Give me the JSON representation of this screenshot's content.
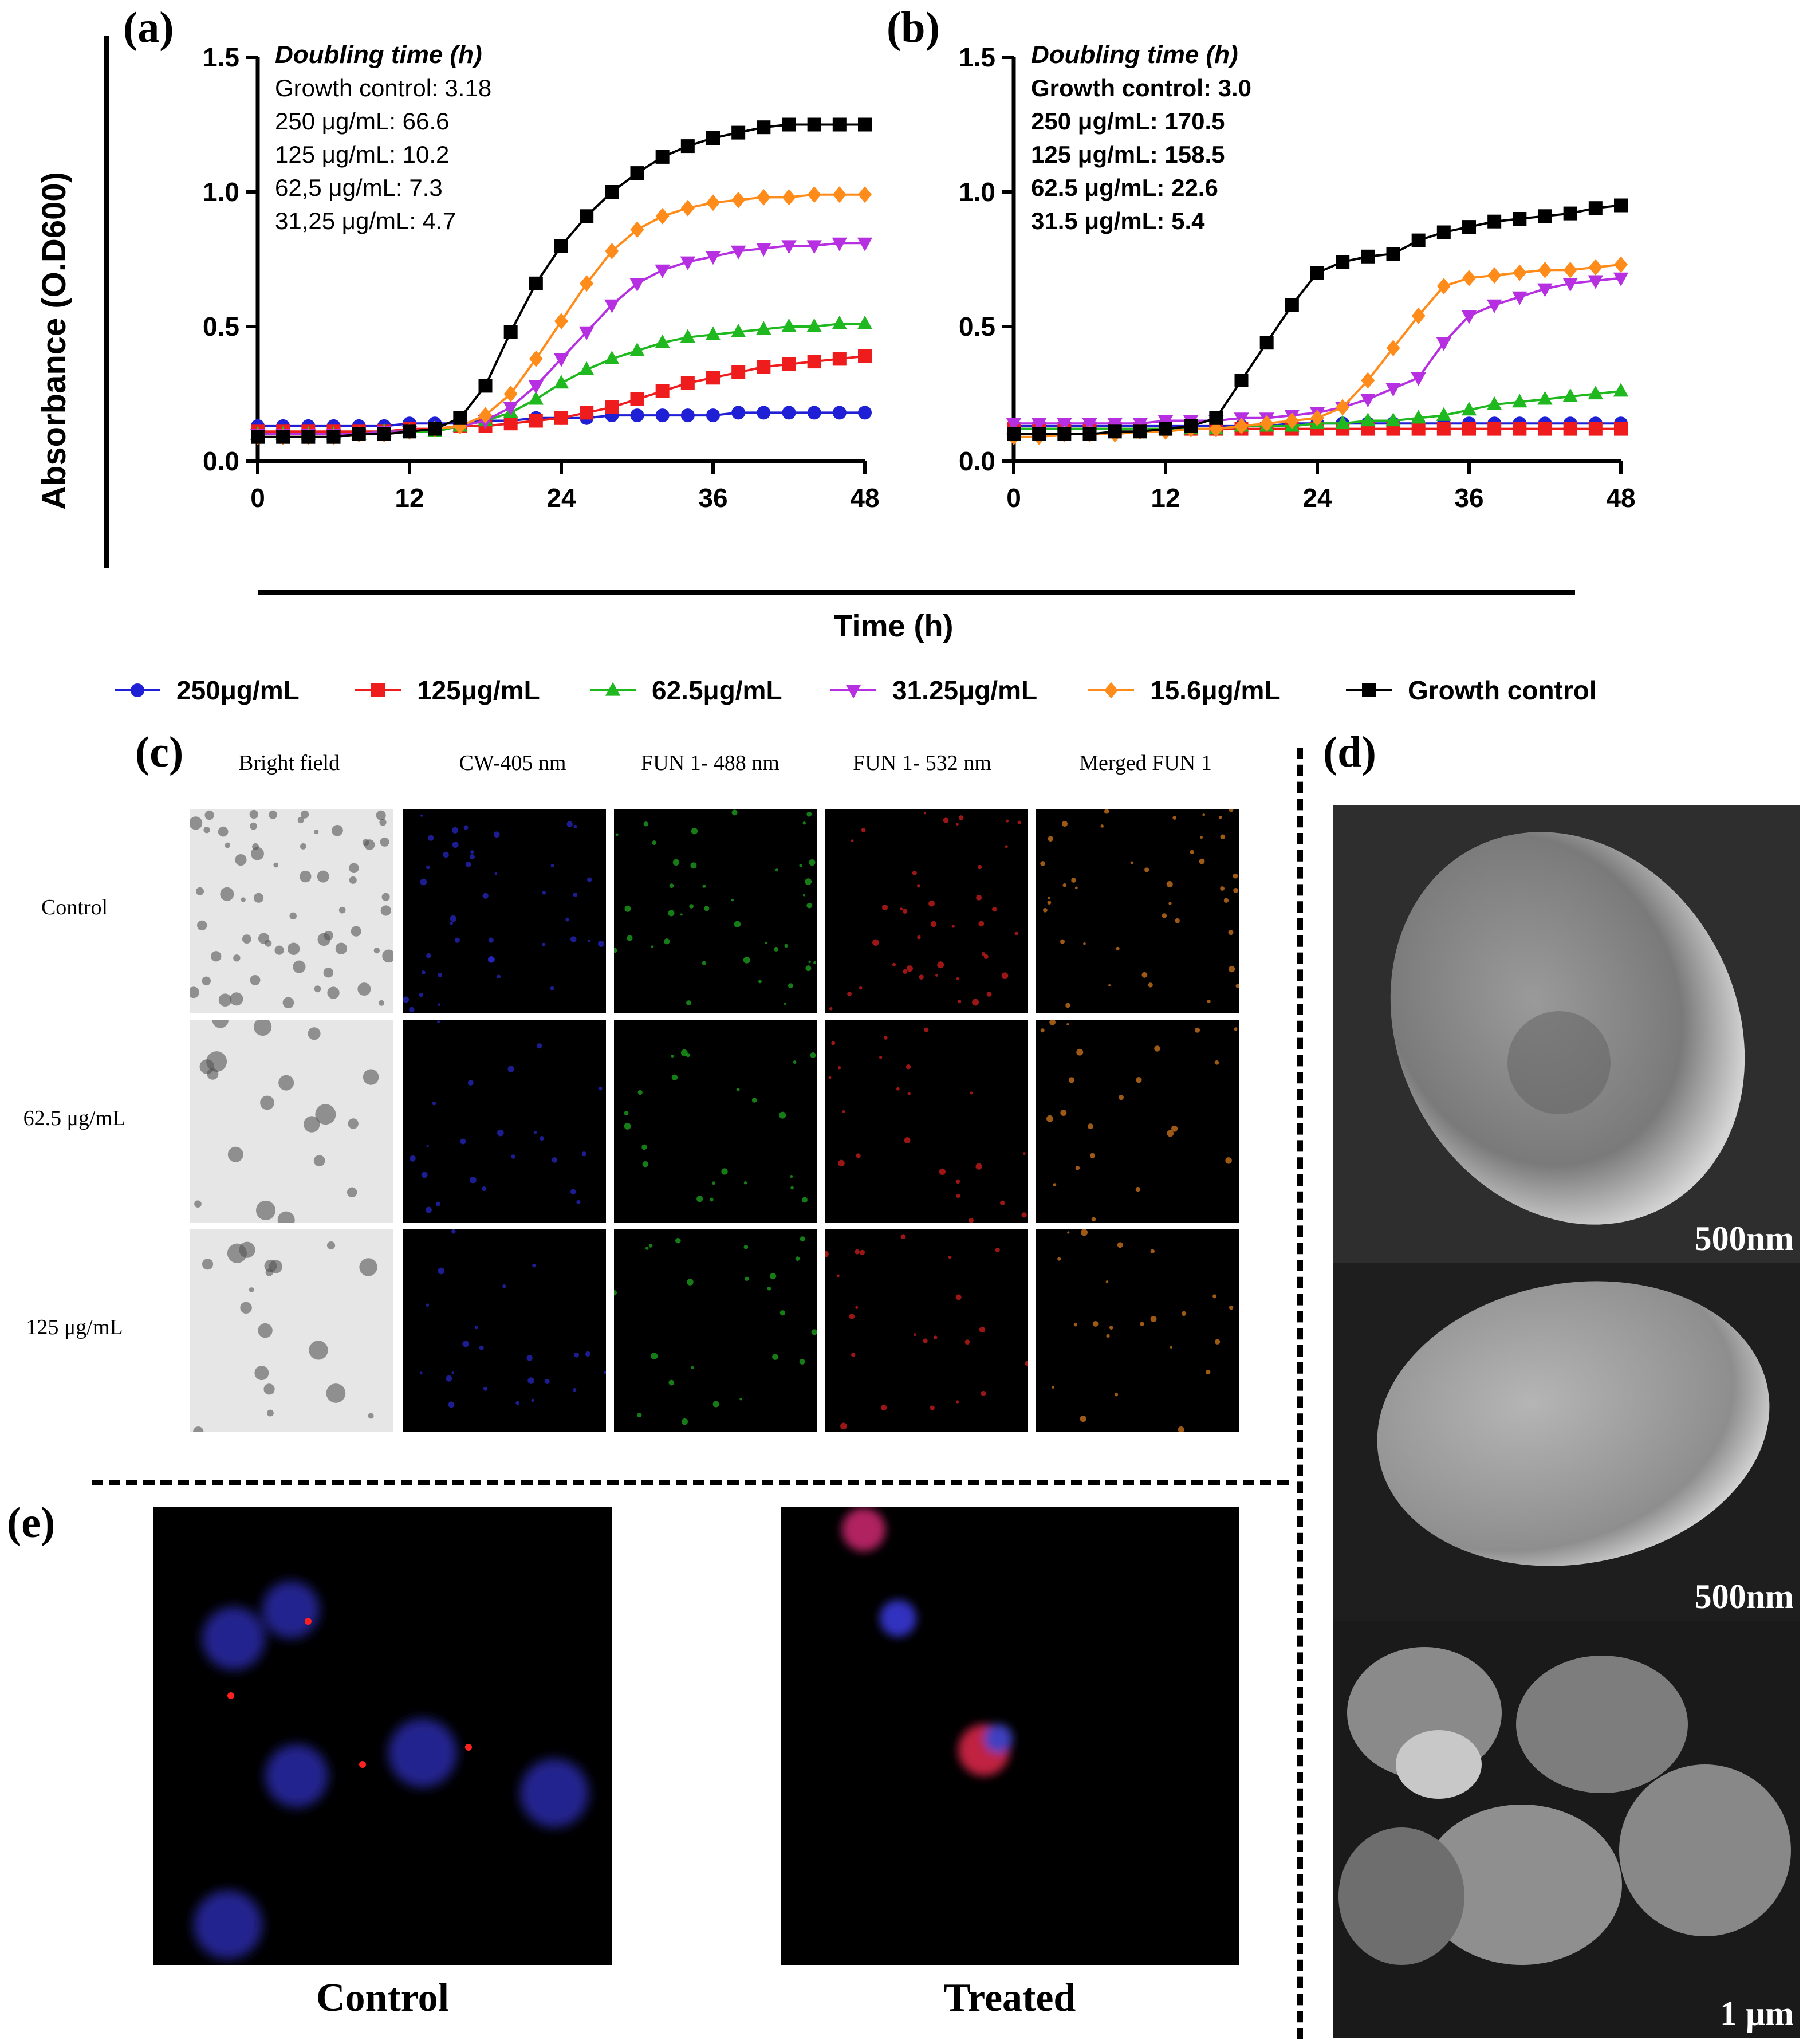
{
  "panels": {
    "a": "(a)",
    "b": "(b)",
    "c": "(c)",
    "d": "(d)",
    "e": "(e)"
  },
  "shared": {
    "ylabel": "Absorbance (O.D600)",
    "xlabel": "Time (h)"
  },
  "legend": [
    {
      "label": "250μg/mL",
      "color": "#1f1fd6",
      "marker": "circle"
    },
    {
      "label": "125μg/mL",
      "color": "#ee1c1c",
      "marker": "square"
    },
    {
      "label": "62.5μg/mL",
      "color": "#1fb81f",
      "marker": "triangle-up"
    },
    {
      "label": "31.25μg/mL",
      "color": "#b62fe0",
      "marker": "triangle-down"
    },
    {
      "label": "15.6μg/mL",
      "color": "#ff8c1a",
      "marker": "diamond"
    },
    {
      "label": "Growth control",
      "color": "#000000",
      "marker": "square"
    }
  ],
  "chart_data": [
    {
      "type": "line",
      "panel": "(a)",
      "xlim": [
        0,
        48
      ],
      "ylim": [
        0,
        1.5
      ],
      "xticks": [
        "0",
        "12",
        "24",
        "36",
        "48"
      ],
      "yticks": [
        "0.0",
        "0.5",
        "1.0",
        "1.5"
      ],
      "annotation_title": "Doubling time (h)",
      "annotations": [
        "Growth control: 3.18",
        "250 μg/mL: 66.6",
        "125 μg/mL: 10.2",
        "62,5 μg/mL: 7.3",
        "31,25 μg/mL: 4.7"
      ],
      "x": [
        0,
        2,
        4,
        6,
        8,
        10,
        12,
        14,
        16,
        18,
        20,
        22,
        24,
        26,
        28,
        30,
        32,
        34,
        36,
        38,
        40,
        42,
        44,
        46,
        48
      ],
      "series": [
        {
          "name": "250μg/mL",
          "values": [
            0.13,
            0.13,
            0.13,
            0.13,
            0.13,
            0.13,
            0.14,
            0.14,
            0.14,
            0.15,
            0.15,
            0.16,
            0.16,
            0.16,
            0.17,
            0.17,
            0.17,
            0.17,
            0.17,
            0.18,
            0.18,
            0.18,
            0.18,
            0.18,
            0.18
          ]
        },
        {
          "name": "125μg/mL",
          "values": [
            0.11,
            0.11,
            0.11,
            0.11,
            0.11,
            0.11,
            0.12,
            0.12,
            0.13,
            0.13,
            0.14,
            0.15,
            0.16,
            0.18,
            0.2,
            0.23,
            0.26,
            0.29,
            0.31,
            0.33,
            0.35,
            0.36,
            0.37,
            0.38,
            0.39
          ]
        },
        {
          "name": "62.5μg/mL",
          "values": [
            0.1,
            0.1,
            0.1,
            0.1,
            0.1,
            0.11,
            0.11,
            0.11,
            0.13,
            0.15,
            0.18,
            0.23,
            0.29,
            0.34,
            0.38,
            0.41,
            0.44,
            0.46,
            0.47,
            0.48,
            0.49,
            0.5,
            0.5,
            0.51,
            0.51
          ]
        },
        {
          "name": "31.25μg/mL",
          "values": [
            0.1,
            0.1,
            0.1,
            0.1,
            0.1,
            0.11,
            0.11,
            0.12,
            0.13,
            0.15,
            0.2,
            0.28,
            0.38,
            0.48,
            0.58,
            0.66,
            0.71,
            0.74,
            0.76,
            0.78,
            0.79,
            0.8,
            0.8,
            0.81,
            0.81
          ]
        },
        {
          "name": "15.6μg/mL",
          "values": [
            0.09,
            0.09,
            0.09,
            0.09,
            0.1,
            0.1,
            0.11,
            0.12,
            0.13,
            0.17,
            0.25,
            0.38,
            0.52,
            0.66,
            0.78,
            0.86,
            0.91,
            0.94,
            0.96,
            0.97,
            0.98,
            0.98,
            0.99,
            0.99,
            0.99
          ]
        },
        {
          "name": "Growth control",
          "values": [
            0.09,
            0.09,
            0.09,
            0.09,
            0.1,
            0.1,
            0.11,
            0.12,
            0.16,
            0.28,
            0.48,
            0.66,
            0.8,
            0.91,
            1.0,
            1.07,
            1.13,
            1.17,
            1.2,
            1.22,
            1.24,
            1.25,
            1.25,
            1.25,
            1.25
          ]
        }
      ]
    },
    {
      "type": "line",
      "panel": "(b)",
      "xlim": [
        0,
        48
      ],
      "ylim": [
        0,
        1.5
      ],
      "xticks": [
        "0",
        "12",
        "24",
        "36",
        "48"
      ],
      "yticks": [
        "0.0",
        "0.5",
        "1.0",
        "1.5"
      ],
      "annotation_title": "Doubling time (h)",
      "annotations": [
        "Growth control: 3.0",
        "250 μg/mL: 170.5",
        "125 μg/mL: 158.5",
        "62.5 μg/mL: 22.6",
        "31.5 μg/mL: 5.4"
      ],
      "x": [
        0,
        2,
        4,
        6,
        8,
        10,
        12,
        14,
        16,
        18,
        20,
        22,
        24,
        26,
        28,
        30,
        32,
        34,
        36,
        38,
        40,
        42,
        44,
        46,
        48
      ],
      "series": [
        {
          "name": "250μg/mL",
          "values": [
            0.13,
            0.13,
            0.13,
            0.13,
            0.13,
            0.13,
            0.13,
            0.13,
            0.13,
            0.13,
            0.13,
            0.14,
            0.14,
            0.14,
            0.14,
            0.14,
            0.14,
            0.14,
            0.14,
            0.14,
            0.14,
            0.14,
            0.14,
            0.14,
            0.14
          ]
        },
        {
          "name": "125μg/mL",
          "values": [
            0.12,
            0.12,
            0.12,
            0.12,
            0.12,
            0.12,
            0.12,
            0.12,
            0.12,
            0.12,
            0.12,
            0.12,
            0.12,
            0.12,
            0.12,
            0.12,
            0.12,
            0.12,
            0.12,
            0.12,
            0.12,
            0.12,
            0.12,
            0.12,
            0.12
          ]
        },
        {
          "name": "62.5μg/mL",
          "values": [
            0.12,
            0.12,
            0.12,
            0.12,
            0.12,
            0.12,
            0.12,
            0.12,
            0.12,
            0.13,
            0.13,
            0.13,
            0.14,
            0.14,
            0.15,
            0.15,
            0.16,
            0.17,
            0.19,
            0.21,
            0.22,
            0.23,
            0.24,
            0.25,
            0.26
          ]
        },
        {
          "name": "31.25μg/mL",
          "values": [
            0.14,
            0.14,
            0.14,
            0.14,
            0.14,
            0.14,
            0.15,
            0.15,
            0.15,
            0.16,
            0.16,
            0.17,
            0.18,
            0.2,
            0.23,
            0.27,
            0.31,
            0.44,
            0.54,
            0.58,
            0.61,
            0.64,
            0.66,
            0.67,
            0.68
          ]
        },
        {
          "name": "15.6μg/mL",
          "values": [
            0.09,
            0.09,
            0.1,
            0.1,
            0.1,
            0.11,
            0.11,
            0.12,
            0.12,
            0.13,
            0.14,
            0.15,
            0.16,
            0.2,
            0.3,
            0.42,
            0.54,
            0.65,
            0.68,
            0.69,
            0.7,
            0.71,
            0.71,
            0.72,
            0.73
          ]
        },
        {
          "name": "Growth control",
          "values": [
            0.1,
            0.1,
            0.1,
            0.1,
            0.11,
            0.11,
            0.12,
            0.13,
            0.16,
            0.3,
            0.44,
            0.58,
            0.7,
            0.74,
            0.76,
            0.77,
            0.82,
            0.85,
            0.87,
            0.89,
            0.9,
            0.91,
            0.92,
            0.94,
            0.95
          ]
        }
      ]
    }
  ],
  "panel_c": {
    "columns": [
      "Bright field",
      "CW-405 nm",
      "FUN 1- 488 nm",
      "FUN 1- 532 nm",
      "Merged FUN 1"
    ],
    "rows": [
      "Control",
      "62.5 μg/mL",
      "125 μg/mL"
    ]
  },
  "panel_d": {
    "scales": [
      "500nm",
      "500nm",
      "1 μm"
    ]
  },
  "panel_e": {
    "labels": [
      "Control",
      "Treated"
    ]
  }
}
